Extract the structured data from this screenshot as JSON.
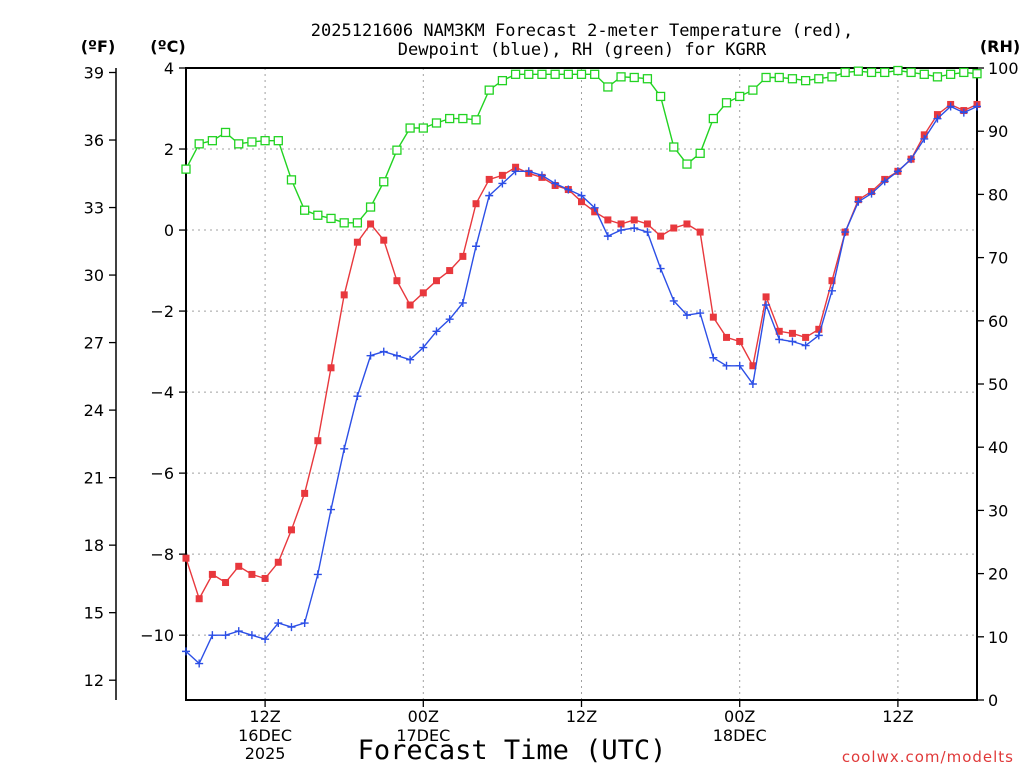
{
  "chart_data": {
    "type": "line",
    "title_line1": "2025121606 NAM3KM Forecast 2-meter Temperature (red),",
    "title_line2": "Dewpoint (blue), RH (green) for KGRR",
    "xlabel": "Forecast Time (UTC)",
    "credit": "coolwx.com/modelts",
    "units": {
      "f": "(ºF)",
      "c": "(ºC)",
      "rh": "(RH)"
    },
    "x_range_hours": [
      6,
      66
    ],
    "x_ticks": [
      {
        "hour": 12,
        "line1": "12Z",
        "line2": "16DEC",
        "line3": "2025"
      },
      {
        "hour": 24,
        "line1": "00Z",
        "line2": "17DEC",
        "line3": ""
      },
      {
        "hour": 36,
        "line1": "12Z",
        "line2": "",
        "line3": ""
      },
      {
        "hour": 48,
        "line1": "00Z",
        "line2": "18DEC",
        "line3": ""
      },
      {
        "hour": 60,
        "line1": "12Z",
        "line2": "",
        "line3": ""
      }
    ],
    "y_celsius_range": [
      -11.6,
      4
    ],
    "y_celsius_ticks": [
      "4",
      "2",
      "0",
      "−2",
      "−4",
      "−6",
      "−8",
      "−10"
    ],
    "y_fahrenheit_ticks": [
      "39",
      "36",
      "33",
      "30",
      "27",
      "24",
      "21",
      "18",
      "15",
      "12"
    ],
    "y_rh_range": [
      0,
      100
    ],
    "y_rh_ticks": [
      "100",
      "90",
      "80",
      "70",
      "60",
      "50",
      "40",
      "30",
      "20",
      "10",
      "0"
    ],
    "colors": {
      "temperature": "#e8383d",
      "dewpoint": "#2c4fe6",
      "rh": "#22d322",
      "grid": "#a0a0a0",
      "credit": "#e03a3a"
    },
    "series": [
      {
        "name": "Temperature",
        "unit": "C",
        "values": [
          -8.1,
          -9.1,
          -8.5,
          -8.7,
          -8.3,
          -8.5,
          -8.6,
          -8.2,
          -7.4,
          -6.5,
          -5.2,
          -3.4,
          -1.6,
          -0.3,
          0.15,
          -0.25,
          -1.25,
          -1.85,
          -1.55,
          -1.25,
          -1.0,
          -0.65,
          0.65,
          1.25,
          1.35,
          1.55,
          1.4,
          1.3,
          1.1,
          1.0,
          0.7,
          0.45,
          0.25,
          0.15,
          0.25,
          0.15,
          -0.15,
          0.05,
          0.15,
          -0.05,
          -2.15,
          -2.65,
          -2.75,
          -3.35,
          -1.65,
          -2.5,
          -2.55,
          -2.65,
          -2.45,
          -1.25,
          -0.05,
          0.75,
          0.95,
          1.25,
          1.45,
          1.75,
          2.35,
          2.85,
          3.1,
          2.95,
          3.1
        ]
      },
      {
        "name": "Dewpoint",
        "unit": "C",
        "values": [
          -10.4,
          -10.7,
          -10.0,
          -10.0,
          -9.9,
          -10.0,
          -10.1,
          -9.7,
          -9.8,
          -9.7,
          -8.5,
          -6.9,
          -5.4,
          -4.1,
          -3.1,
          -3.0,
          -3.1,
          -3.2,
          -2.9,
          -2.5,
          -2.2,
          -1.8,
          -0.4,
          0.85,
          1.15,
          1.45,
          1.45,
          1.35,
          1.15,
          1.0,
          0.85,
          0.55,
          -0.15,
          0.0,
          0.05,
          -0.05,
          -0.95,
          -1.75,
          -2.1,
          -2.05,
          -3.15,
          -3.35,
          -3.35,
          -3.8,
          -1.85,
          -2.7,
          -2.75,
          -2.85,
          -2.6,
          -1.5,
          -0.05,
          0.7,
          0.9,
          1.2,
          1.45,
          1.75,
          2.25,
          2.75,
          3.05,
          2.9,
          3.05
        ]
      },
      {
        "name": "RH",
        "unit": "%",
        "values": [
          84,
          88,
          88.5,
          89.8,
          88,
          88.3,
          88.5,
          88.5,
          82.3,
          77.5,
          76.7,
          76.2,
          75.5,
          75.5,
          78,
          82,
          87,
          90.5,
          90.5,
          91.3,
          92,
          92,
          91.8,
          96.5,
          98,
          99,
          99,
          99,
          99,
          99,
          99,
          99,
          97,
          98.6,
          98.5,
          98.3,
          95.5,
          87.5,
          84.8,
          86.5,
          92,
          94.5,
          95.5,
          96.5,
          98.5,
          98.5,
          98.3,
          98,
          98.3,
          98.6,
          99.3,
          99.5,
          99.3,
          99.3,
          99.6,
          99.3,
          99,
          98.6,
          99,
          99.3,
          99.1
        ]
      }
    ]
  }
}
